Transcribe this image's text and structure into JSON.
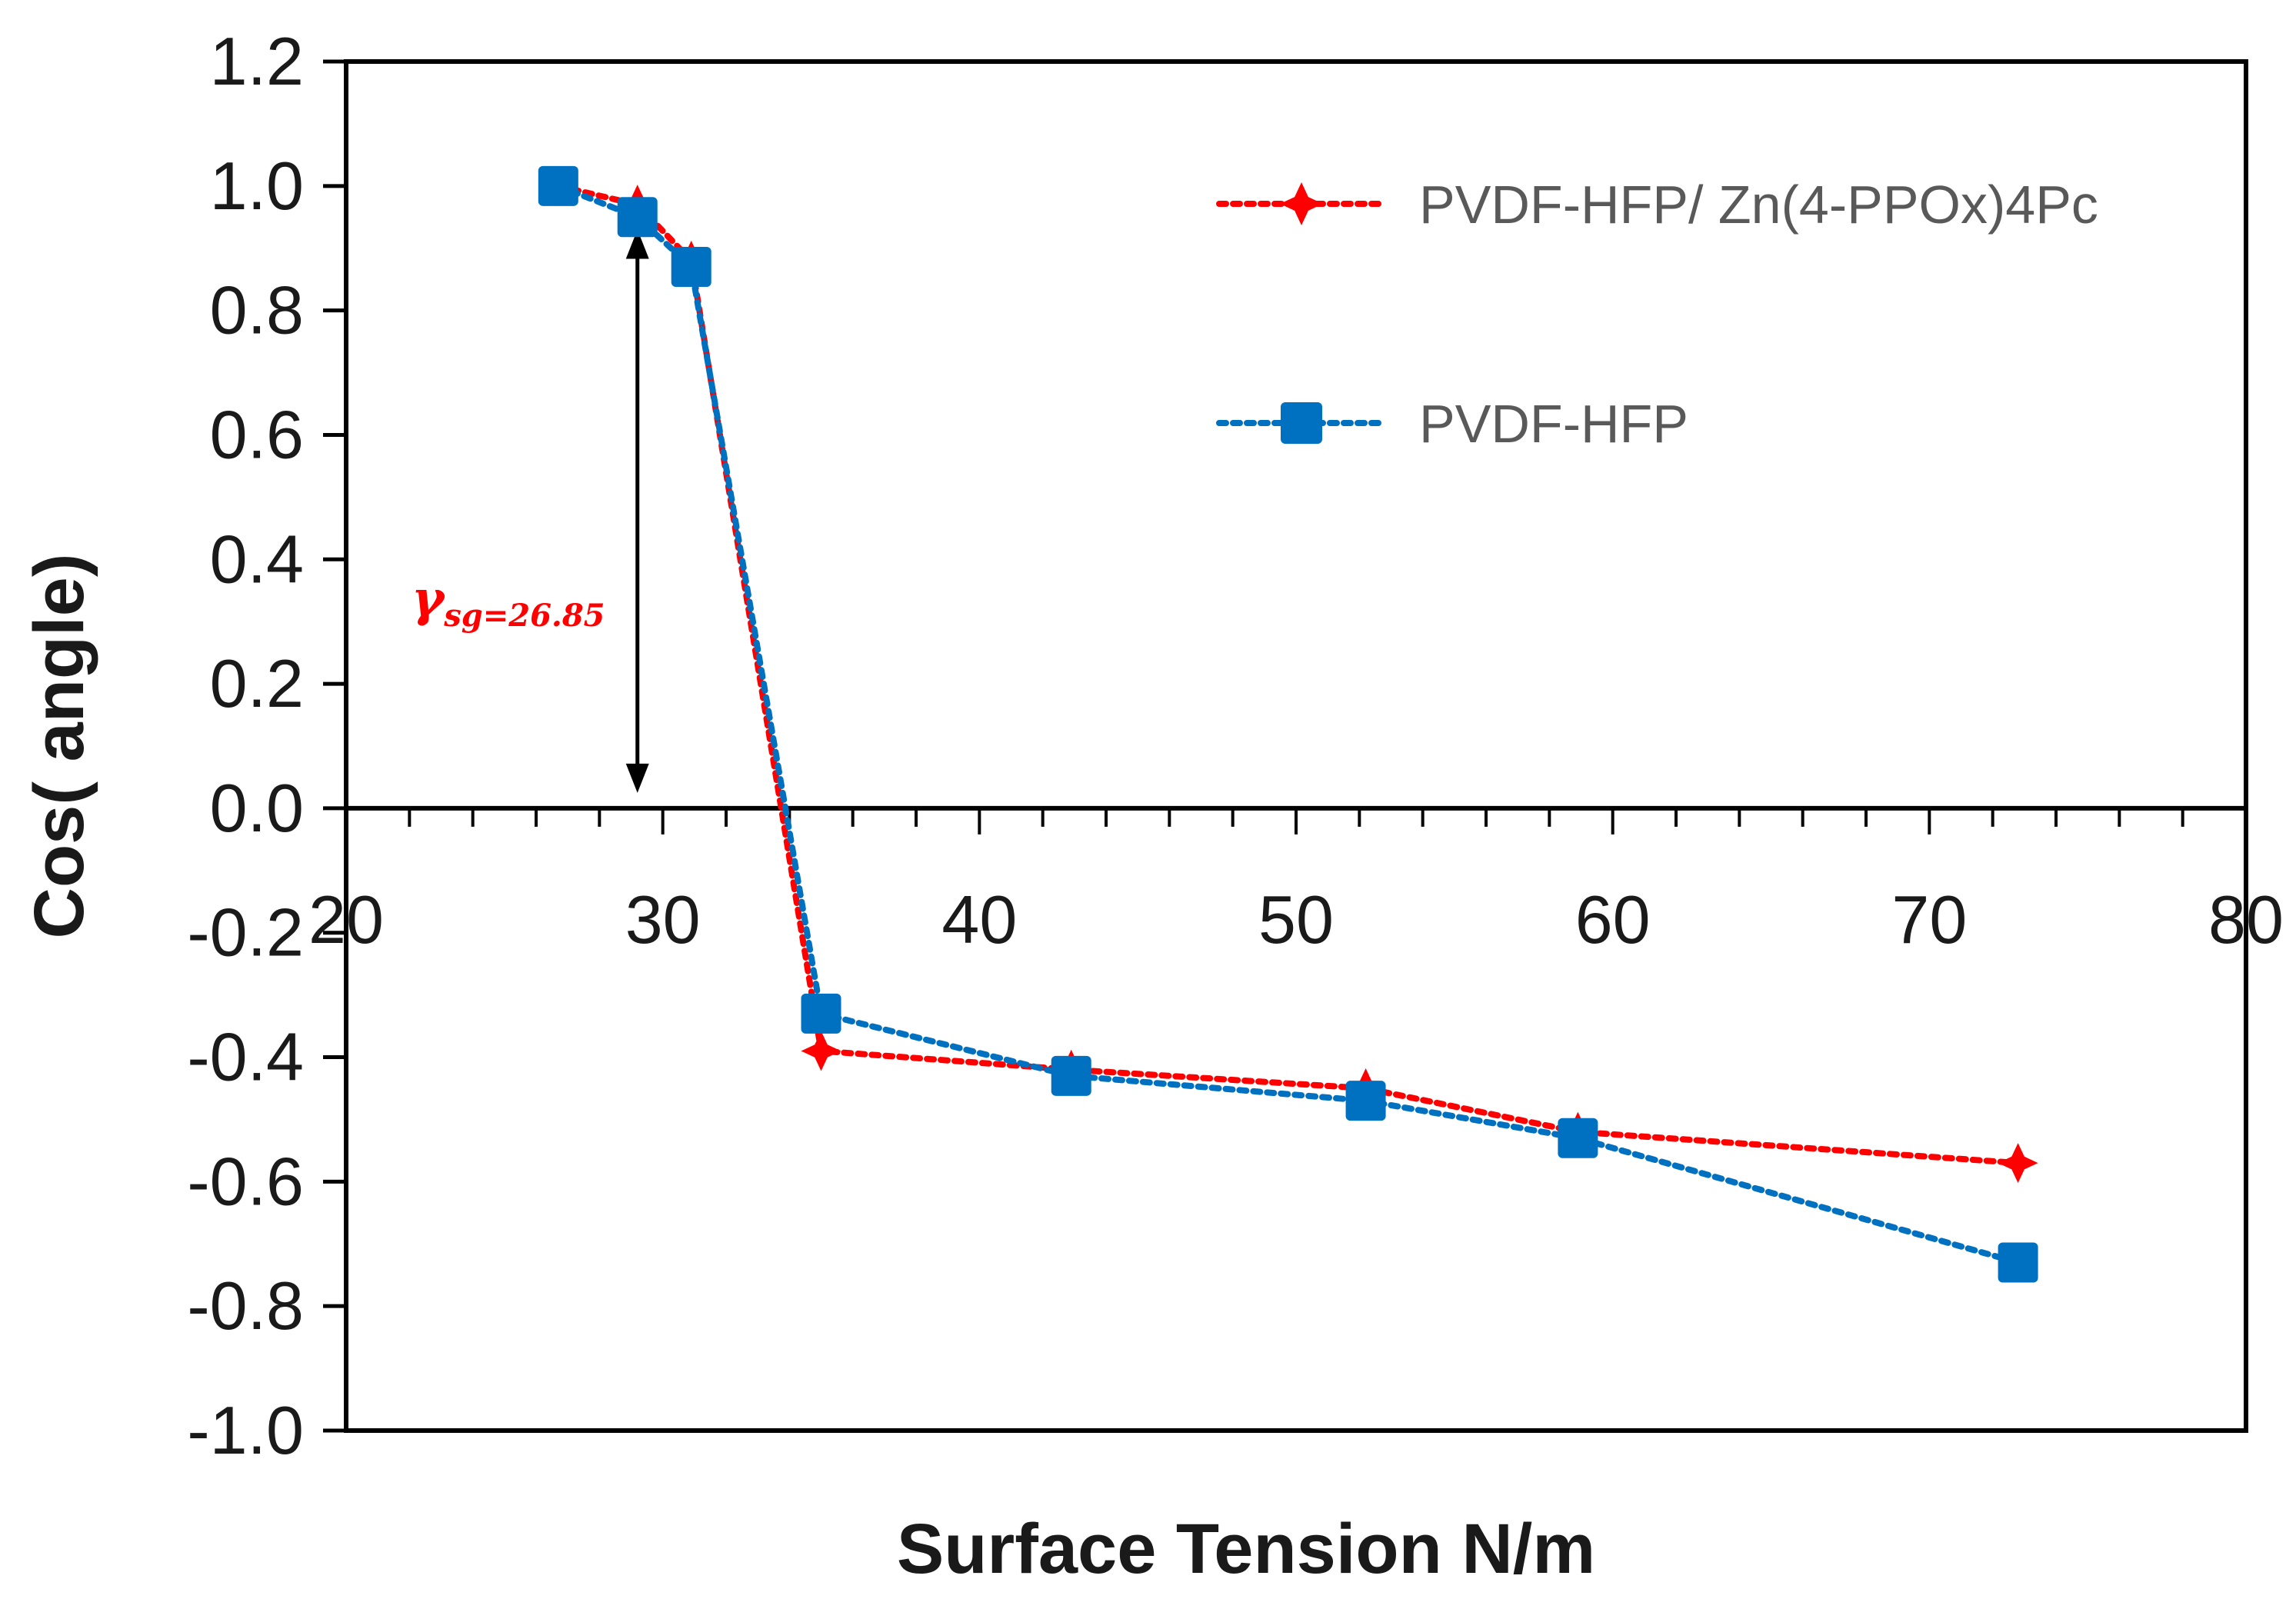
{
  "chart_data": {
    "type": "line",
    "title": "",
    "xlabel": "Surface Tension N/m",
    "ylabel": "Cos( angle)",
    "xlim": [
      20,
      80
    ],
    "ylim": [
      -1.0,
      1.2
    ],
    "xticks": [
      20,
      30,
      40,
      50,
      60,
      70,
      80
    ],
    "yticks": [
      1.2,
      1.0,
      0.8,
      0.6,
      0.4,
      0.2,
      0.0,
      -0.2,
      -0.4,
      -0.6,
      -0.8,
      -1.0
    ],
    "ytick_labels": [
      "1.2",
      "1.0",
      "0.8",
      "0.6",
      "0.4",
      "0.2",
      "0.0",
      "-0.2",
      "-0.4",
      "-0.6",
      "-0.8",
      "-1.0"
    ],
    "xtick_labels": [
      "20",
      "30",
      "40",
      "50",
      "60",
      "70",
      "80"
    ],
    "grid": false,
    "legend_position": "top-right",
    "series": [
      {
        "name": "PVDF-HFP/ Zn(4-PPOx)4Pc",
        "color": "#ff0000",
        "marker": "star",
        "line_style": "dotted",
        "x": [
          26.7,
          29.2,
          30.9,
          35.0,
          42.9,
          52.2,
          58.9,
          72.8
        ],
        "y": [
          1.0,
          0.97,
          0.88,
          -0.39,
          -0.42,
          -0.45,
          -0.52,
          -0.57
        ]
      },
      {
        "name": "PVDF-HFP",
        "color": "#0070c0",
        "marker": "square",
        "line_style": "dotted",
        "x": [
          26.7,
          29.2,
          30.9,
          35.0,
          42.9,
          52.2,
          58.9,
          72.8
        ],
        "y": [
          1.0,
          0.95,
          0.87,
          -0.33,
          -0.43,
          -0.47,
          -0.53,
          -0.73
        ]
      }
    ],
    "annotations": [
      {
        "text_symbol": "γ",
        "text_sub": "sg=26.85",
        "color": "#ff0000",
        "arrow_x": 29.2,
        "arrow_y_range": [
          0.0,
          0.93
        ],
        "arrow_color": "#000000"
      }
    ]
  }
}
